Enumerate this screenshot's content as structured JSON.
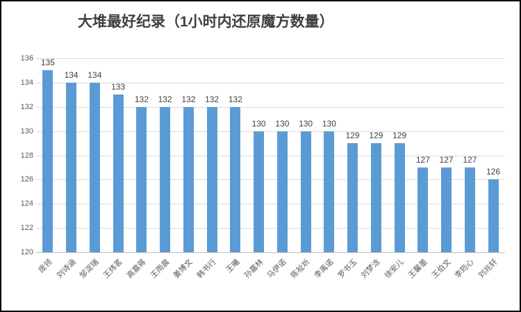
{
  "chart_data": {
    "type": "bar",
    "title": "大堆最好纪录（1小时内还原魔方数量）",
    "categories": [
      "庞领",
      "刘诗涵",
      "邹淀瑞",
      "王炜茗",
      "高嘉蒋",
      "王雨晨",
      "姜博文",
      "韩书行",
      "王曦",
      "孙嘉林",
      "马伊诺",
      "陈祉圻",
      "李禹诺",
      "罗书玉",
      "刘梦浛",
      "徐安儿",
      "王馨墨",
      "王伯文",
      "李筠心",
      "刘兆轩"
    ],
    "values": [
      135,
      134,
      134,
      133,
      132,
      132,
      132,
      132,
      132,
      130,
      130,
      130,
      130,
      129,
      129,
      129,
      127,
      127,
      127,
      126
    ],
    "xlabel": "",
    "ylabel": "",
    "ylim": [
      120,
      136
    ],
    "yticks": [
      120,
      122,
      124,
      126,
      128,
      130,
      132,
      134,
      136
    ],
    "grid": true,
    "legend_position": "none",
    "data_labels": true,
    "colors": {
      "bar": "#5b9bd5",
      "gridline": "#d9d9d9",
      "axis_line": "#bfbfbf",
      "data_label": "#404040",
      "tick_label": "#595959",
      "title": "#3f3f3f"
    }
  }
}
